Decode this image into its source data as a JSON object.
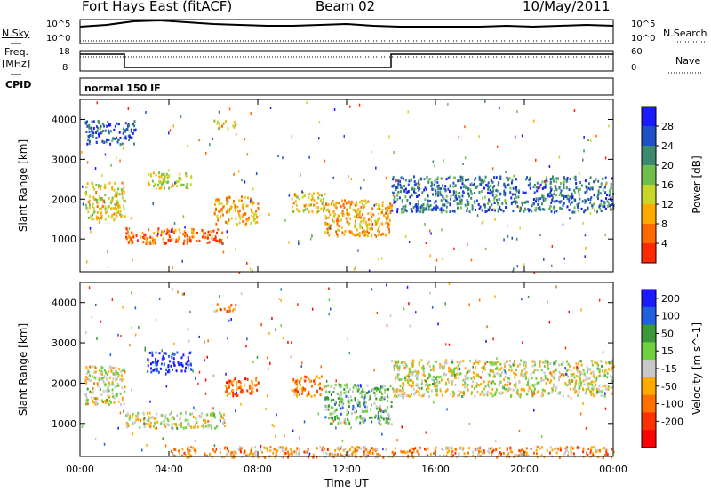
{
  "header": {
    "station": "Fort Hays East (fitACF)",
    "beam": "Beam 02",
    "date": "10/May/2011"
  },
  "top_panels": {
    "nsky_label": "N.Sky",
    "nsky_ticks": [
      "10^5",
      "10^0"
    ],
    "nsearch_label": "N.Search",
    "nsearch_ticks": [
      "10^5",
      "10^0"
    ],
    "freq_label": "Freq.",
    "freq_unit": "[MHz]",
    "freq_ticks": [
      "18",
      "8"
    ],
    "nave_label": "Nave",
    "nave_ticks": [
      "60",
      "0"
    ],
    "cpid_label": "CPID",
    "cpid_value": "normal 150 IF"
  },
  "chart_data": [
    {
      "type": "heatmap",
      "ylabel": "Slant Range [km]",
      "xlabel": "Time UT",
      "x_ticks": [
        "00:00",
        "04:00",
        "08:00",
        "12:00",
        "16:00",
        "20:00",
        "00:00"
      ],
      "y_ticks": [
        "1000",
        "2000",
        "3000",
        "4000"
      ],
      "ylim": [
        180,
        4500
      ],
      "xlim_hours": [
        0,
        24
      ],
      "colorbar_label": "Power [dB]",
      "colorbar_ticks": [
        "4",
        "8",
        "12",
        "16",
        "20",
        "24",
        "28"
      ],
      "colorbar_colors": [
        "#1a1aff",
        "#1f4fc4",
        "#3c8a6e",
        "#6fbf4e",
        "#c8d628",
        "#ffaa00",
        "#ff6a00",
        "#ff2a00"
      ],
      "regions": [
        {
          "t": [
            0.2,
            2.0
          ],
          "r": [
            1500,
            2450
          ],
          "level": 0.6
        },
        {
          "t": [
            2.0,
            6.5
          ],
          "r": [
            900,
            1300
          ],
          "level": 0.85
        },
        {
          "t": [
            3.0,
            5.0
          ],
          "r": [
            2300,
            2700
          ],
          "level": 0.55
        },
        {
          "t": [
            6.0,
            8.0
          ],
          "r": [
            1400,
            2100
          ],
          "level": 0.7
        },
        {
          "t": [
            9.5,
            11.0
          ],
          "r": [
            1700,
            2200
          ],
          "level": 0.6
        },
        {
          "t": [
            11.0,
            14.0
          ],
          "r": [
            1100,
            2000
          ],
          "level": 0.7
        },
        {
          "t": [
            14.0,
            24.0
          ],
          "r": [
            1700,
            2600
          ],
          "level": 0.25
        },
        {
          "t": [
            0.2,
            2.5
          ],
          "r": [
            3400,
            4000
          ],
          "level": 0.2
        },
        {
          "t": [
            6.0,
            7.0
          ],
          "r": [
            3800,
            4000
          ],
          "level": 0.6
        }
      ]
    },
    {
      "type": "heatmap",
      "ylabel": "Slant Range [km]",
      "xlabel": "Time UT",
      "x_ticks": [
        "00:00",
        "04:00",
        "08:00",
        "12:00",
        "16:00",
        "20:00",
        "00:00"
      ],
      "y_ticks": [
        "1000",
        "2000",
        "3000",
        "4000"
      ],
      "ylim": [
        180,
        4500
      ],
      "xlim_hours": [
        0,
        24
      ],
      "colorbar_label": "Velocity [m s^-1]",
      "colorbar_ticks": [
        "200",
        "100",
        "50",
        "15",
        "-15",
        "-50",
        "-100",
        "-200"
      ],
      "colorbar_colors": [
        "#1a1aff",
        "#2060e0",
        "#3a9a3a",
        "#70d040",
        "#c8c8c8",
        "#ffaa00",
        "#ff7000",
        "#ff3000",
        "#ff0000"
      ],
      "regions": [
        {
          "t": [
            0.2,
            2.0
          ],
          "r": [
            1500,
            2450
          ],
          "level": 0.5
        },
        {
          "t": [
            2.0,
            6.5
          ],
          "r": [
            900,
            1300
          ],
          "level": 0.5
        },
        {
          "t": [
            3.0,
            5.0
          ],
          "r": [
            2300,
            2800
          ],
          "level": 0.05
        },
        {
          "t": [
            6.5,
            8.0
          ],
          "r": [
            1700,
            2200
          ],
          "level": 0.75
        },
        {
          "t": [
            9.5,
            11.0
          ],
          "r": [
            1700,
            2200
          ],
          "level": 0.7
        },
        {
          "t": [
            11.0,
            14.0
          ],
          "r": [
            1000,
            2000
          ],
          "level": 0.35
        },
        {
          "t": [
            14.0,
            24.0
          ],
          "r": [
            1700,
            2600
          ],
          "level": 0.5
        },
        {
          "t": [
            4.0,
            24.0
          ],
          "r": [
            180,
            450
          ],
          "level": 0.65
        },
        {
          "t": [
            6.0,
            7.0
          ],
          "r": [
            3800,
            4000
          ],
          "level": 0.7
        }
      ]
    }
  ]
}
